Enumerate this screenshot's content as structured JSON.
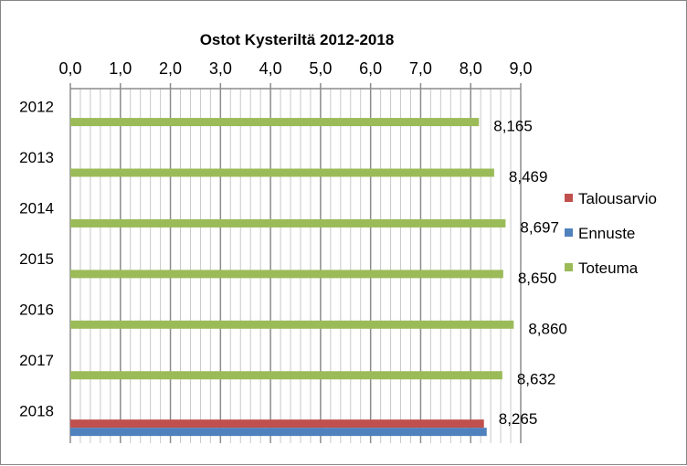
{
  "chart_data": {
    "type": "bar",
    "orientation": "horizontal",
    "title": "Ostot Kysteriltä 2012-2018",
    "xlabel": "",
    "ylabel": "",
    "xlim": [
      0,
      9
    ],
    "x_tick_labels": [
      "0,0",
      "1,0",
      "2,0",
      "3,0",
      "4,0",
      "5,0",
      "6,0",
      "7,0",
      "8,0",
      "9,0"
    ],
    "x_axis_position": "top",
    "grid": true,
    "legend_position": "right",
    "categories": [
      "2012",
      "2013",
      "2014",
      "2015",
      "2016",
      "2017",
      "2018"
    ],
    "series": [
      {
        "name": "Talousarvio",
        "color": "#c0504d",
        "values": [
          null,
          null,
          null,
          null,
          null,
          null,
          8.265
        ]
      },
      {
        "name": "Ennuste",
        "color": "#4f81bd",
        "values": [
          null,
          null,
          null,
          null,
          null,
          null,
          8.32
        ]
      },
      {
        "name": "Toteuma",
        "color": "#9bbb59",
        "values": [
          8.165,
          8.469,
          8.697,
          8.65,
          8.86,
          8.632,
          null
        ]
      }
    ],
    "data_labels": [
      {
        "category": "2012",
        "text": "8,165"
      },
      {
        "category": "2013",
        "text": "8,469"
      },
      {
        "category": "2014",
        "text": "8,697"
      },
      {
        "category": "2015",
        "text": "8,650"
      },
      {
        "category": "2016",
        "text": "8,860"
      },
      {
        "category": "2017",
        "text": "8,632"
      },
      {
        "category": "2018",
        "text": "8,265"
      }
    ]
  }
}
